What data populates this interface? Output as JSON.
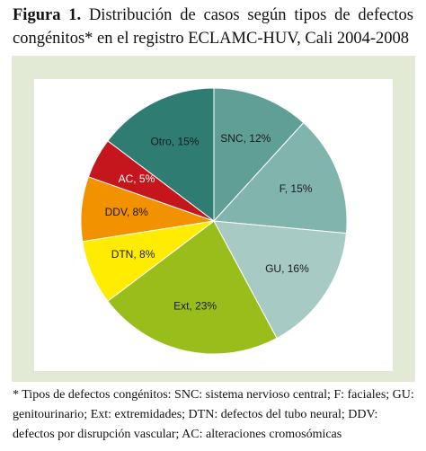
{
  "chart_data": {
    "type": "pie",
    "title_label": "Figura 1.",
    "title": "Distribución de casos según tipos de defectos congénitos* en el registro ECLAMC-HUV, Cali 2004-2008",
    "categories": [
      "SNC",
      "F",
      "GU",
      "Ext",
      "DTN",
      "DDV",
      "AC",
      "Otro"
    ],
    "values": [
      12,
      15,
      16,
      23,
      8,
      8,
      5,
      15
    ],
    "value_labels": [
      "SNC, 12%",
      "F, 15%",
      "GU, 16%",
      "Ext, 23%",
      "DTN, 8%",
      "DDV, 8%",
      "AC, 5%",
      "Otro, 15%"
    ],
    "colors": [
      "#5f9f95",
      "#80b4ac",
      "#a7cac5",
      "#99be1b",
      "#ffec00",
      "#f39200",
      "#c5161d",
      "#2f7d72"
    ],
    "footnote": "* Tipos de defectos congénitos: SNC: sistema nervioso central; F: faciales; GU: genitourinario; Ext: extremidades; DTN: defectos del tubo neural; DDV: defectos por disrupción vascular; AC: alteraciones cromosómicas"
  }
}
